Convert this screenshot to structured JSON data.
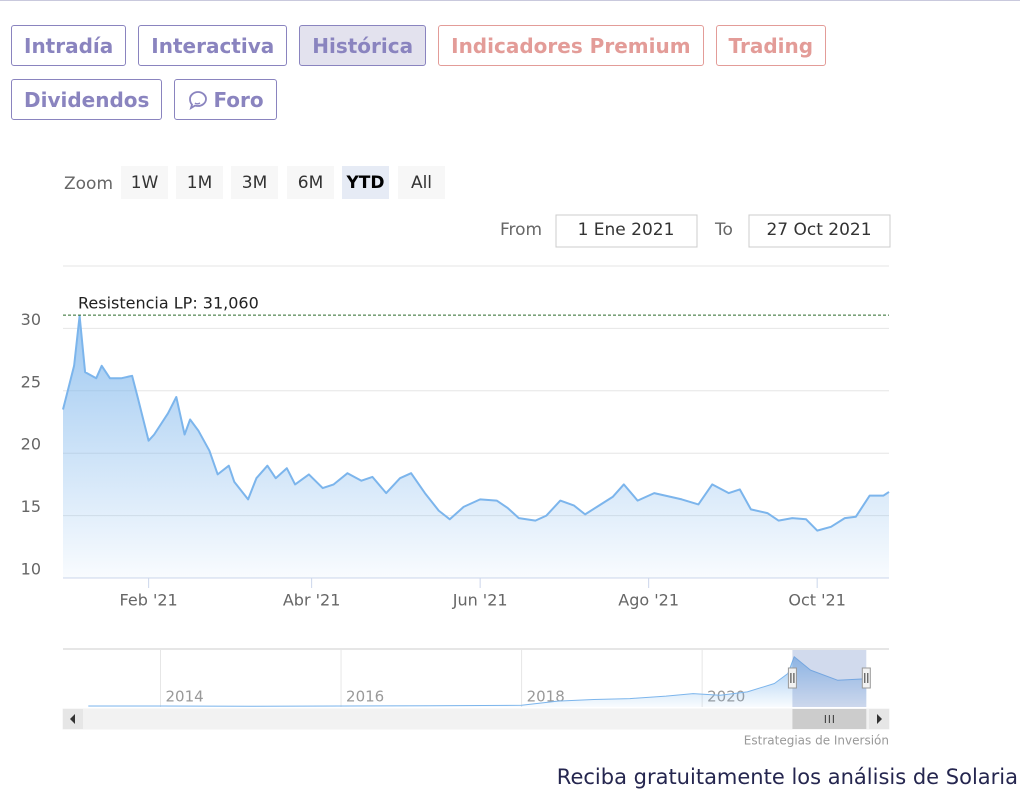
{
  "tabs": [
    {
      "label": "Intradía",
      "style": "normal"
    },
    {
      "label": "Interactiva",
      "style": "normal"
    },
    {
      "label": "Histórica",
      "style": "active"
    },
    {
      "label": "Indicadores Premium",
      "style": "premium"
    },
    {
      "label": "Trading",
      "style": "premium"
    },
    {
      "label": "Dividendos",
      "style": "normal"
    },
    {
      "label": "Foro",
      "style": "normal",
      "icon": "chat"
    }
  ],
  "zoom": {
    "label": "Zoom",
    "buttons": [
      {
        "label": "1W"
      },
      {
        "label": "1M"
      },
      {
        "label": "3M"
      },
      {
        "label": "6M"
      },
      {
        "label": "YTD",
        "active": true
      },
      {
        "label": "All"
      }
    ]
  },
  "range": {
    "from_label": "From",
    "from": "1 Ene 2021",
    "to_label": "To",
    "to": "27 Oct 2021"
  },
  "chart_data": {
    "type": "area",
    "color": "#7cb5ec",
    "x": [
      "2021-01-01",
      "2021-01-05",
      "2021-01-07",
      "2021-01-09",
      "2021-01-13",
      "2021-01-15",
      "2021-01-18",
      "2021-01-22",
      "2021-01-26",
      "2021-01-28",
      "2021-02-01",
      "2021-02-03",
      "2021-02-08",
      "2021-02-11",
      "2021-02-14",
      "2021-02-16",
      "2021-02-19",
      "2021-02-23",
      "2021-02-26",
      "2021-03-02",
      "2021-03-04",
      "2021-03-09",
      "2021-03-12",
      "2021-03-16",
      "2021-03-19",
      "2021-03-23",
      "2021-03-26",
      "2021-03-31",
      "2021-04-05",
      "2021-04-09",
      "2021-04-14",
      "2021-04-19",
      "2021-04-23",
      "2021-04-28",
      "2021-05-03",
      "2021-05-07",
      "2021-05-12",
      "2021-05-17",
      "2021-05-21",
      "2021-05-26",
      "2021-06-01",
      "2021-06-07",
      "2021-06-11",
      "2021-06-15",
      "2021-06-21",
      "2021-06-25",
      "2021-06-30",
      "2021-07-05",
      "2021-07-09",
      "2021-07-14",
      "2021-07-19",
      "2021-07-23",
      "2021-07-28",
      "2021-08-03",
      "2021-08-09",
      "2021-08-13",
      "2021-08-19",
      "2021-08-24",
      "2021-08-30",
      "2021-09-03",
      "2021-09-07",
      "2021-09-13",
      "2021-09-17",
      "2021-09-22",
      "2021-09-27",
      "2021-10-01",
      "2021-10-06",
      "2021-10-11",
      "2021-10-15",
      "2021-10-20",
      "2021-10-25",
      "2021-10-27"
    ],
    "values": [
      23.5,
      27,
      31,
      26.5,
      26,
      27,
      26,
      26,
      26.2,
      24.5,
      21,
      21.5,
      23.2,
      24.5,
      21.5,
      22.7,
      21.8,
      20.2,
      18.3,
      19,
      17.7,
      16.3,
      18,
      19,
      18,
      18.8,
      17.5,
      18.3,
      17.2,
      17.5,
      18.4,
      17.8,
      18.1,
      16.8,
      18,
      18.4,
      16.8,
      15.4,
      14.7,
      15.7,
      16.3,
      16.2,
      15.6,
      14.8,
      14.6,
      15,
      16.2,
      15.8,
      15.1,
      15.8,
      16.5,
      17.5,
      16.2,
      16.8,
      16.5,
      16.3,
      15.9,
      17.5,
      16.8,
      17.1,
      15.5,
      15.2,
      14.6,
      14.8,
      14.7,
      13.8,
      14.1,
      14.8,
      14.9,
      16.6,
      16.6,
      16.9
    ],
    "xlim": [
      "2021-01-01",
      "2021-10-27"
    ],
    "xticks": [
      {
        "value": "2021-02-01",
        "label": "Feb '21"
      },
      {
        "value": "2021-04-01",
        "label": "Abr '21"
      },
      {
        "value": "2021-06-01",
        "label": "Jun '21"
      },
      {
        "value": "2021-08-01",
        "label": "Ago '21"
      },
      {
        "value": "2021-10-01",
        "label": "Oct '21"
      }
    ],
    "ylim": [
      10,
      35
    ],
    "yticks": [
      10,
      15,
      20,
      25,
      30
    ],
    "grid": true,
    "annotation": {
      "label": "Resistencia LP: 31,060",
      "value": 31.06,
      "color": "#2a6b2a"
    }
  },
  "navigator": {
    "type": "area",
    "color": "#7cb5ec",
    "x": [
      2013.2,
      2014,
      2015,
      2016,
      2017,
      2018,
      2018.4,
      2018.8,
      2019.2,
      2019.6,
      2019.9,
      2020.2,
      2020.5,
      2020.8,
      2020.95,
      2021.02,
      2021.2,
      2021.5,
      2021.82
    ],
    "values": [
      0.6,
      0.6,
      0.5,
      0.6,
      0.7,
      1.0,
      3.5,
      4.5,
      5,
      6.5,
      8,
      7,
      9,
      14,
      20,
      30,
      22,
      16,
      16.9
    ],
    "xlim": [
      2012.92,
      2022.07
    ],
    "ylim": [
      0,
      34
    ],
    "xticks": [
      2014,
      2016,
      2018,
      2020
    ]
  },
  "credits": "Estrategias de Inversión",
  "footer": "Reciba gratuitamente los análisis de Solaria"
}
